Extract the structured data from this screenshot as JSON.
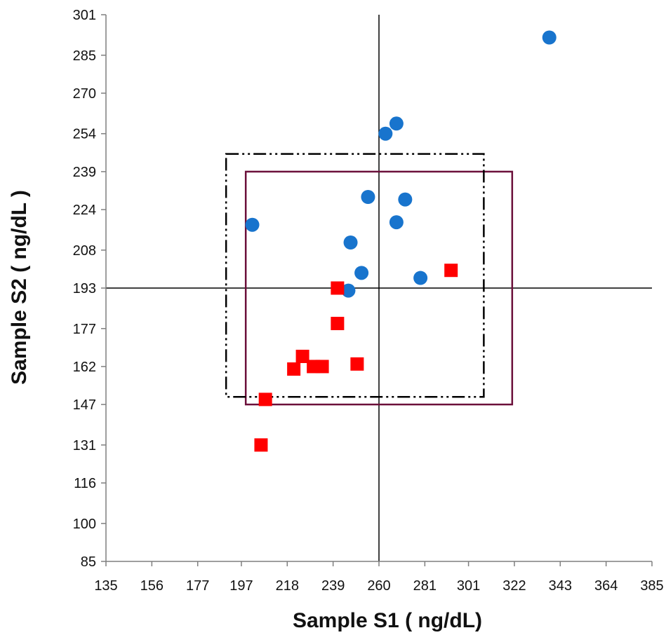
{
  "chart_data": {
    "type": "scatter",
    "title": "",
    "xlabel": "Sample S1 ( ng/dL)",
    "ylabel": "Sample S2 ( ng/dL )",
    "xlim": [
      135,
      385
    ],
    "ylim": [
      85,
      301
    ],
    "x_ticks": [
      135,
      156,
      177,
      197,
      218,
      239,
      260,
      281,
      301,
      322,
      343,
      364,
      385
    ],
    "y_ticks": [
      85,
      100,
      116,
      131,
      147,
      162,
      177,
      193,
      208,
      224,
      239,
      254,
      270,
      285,
      301
    ],
    "grid": false,
    "legend": "none",
    "series": [
      {
        "marker": "circle",
        "color": "#1874CD",
        "points": [
          {
            "x": 202,
            "y": 218
          },
          {
            "x": 247,
            "y": 211
          },
          {
            "x": 252,
            "y": 199
          },
          {
            "x": 246,
            "y": 192
          },
          {
            "x": 255,
            "y": 229
          },
          {
            "x": 272,
            "y": 228
          },
          {
            "x": 268,
            "y": 219
          },
          {
            "x": 263,
            "y": 254
          },
          {
            "x": 268,
            "y": 258
          },
          {
            "x": 279,
            "y": 197
          },
          {
            "x": 338,
            "y": 292
          }
        ]
      },
      {
        "marker": "square",
        "color": "#FF0000",
        "points": [
          {
            "x": 293,
            "y": 200
          },
          {
            "x": 241,
            "y": 193
          },
          {
            "x": 241,
            "y": 179
          },
          {
            "x": 250,
            "y": 163
          },
          {
            "x": 225,
            "y": 166
          },
          {
            "x": 221,
            "y": 161
          },
          {
            "x": 230,
            "y": 162
          },
          {
            "x": 234,
            "y": 162
          },
          {
            "x": 208,
            "y": 149
          },
          {
            "x": 206,
            "y": 131
          }
        ]
      }
    ],
    "reference_lines": {
      "vertical_x": 260,
      "horizontal_y": 193,
      "color": "#000000"
    },
    "boxes": [
      {
        "style": "solid",
        "color": "#6B0F3A",
        "x": [
          199,
          321
        ],
        "y": [
          147,
          239
        ]
      },
      {
        "style": "dash-dot-dot",
        "color": "#000000",
        "x": [
          190,
          308
        ],
        "y": [
          150,
          246
        ]
      }
    ]
  }
}
